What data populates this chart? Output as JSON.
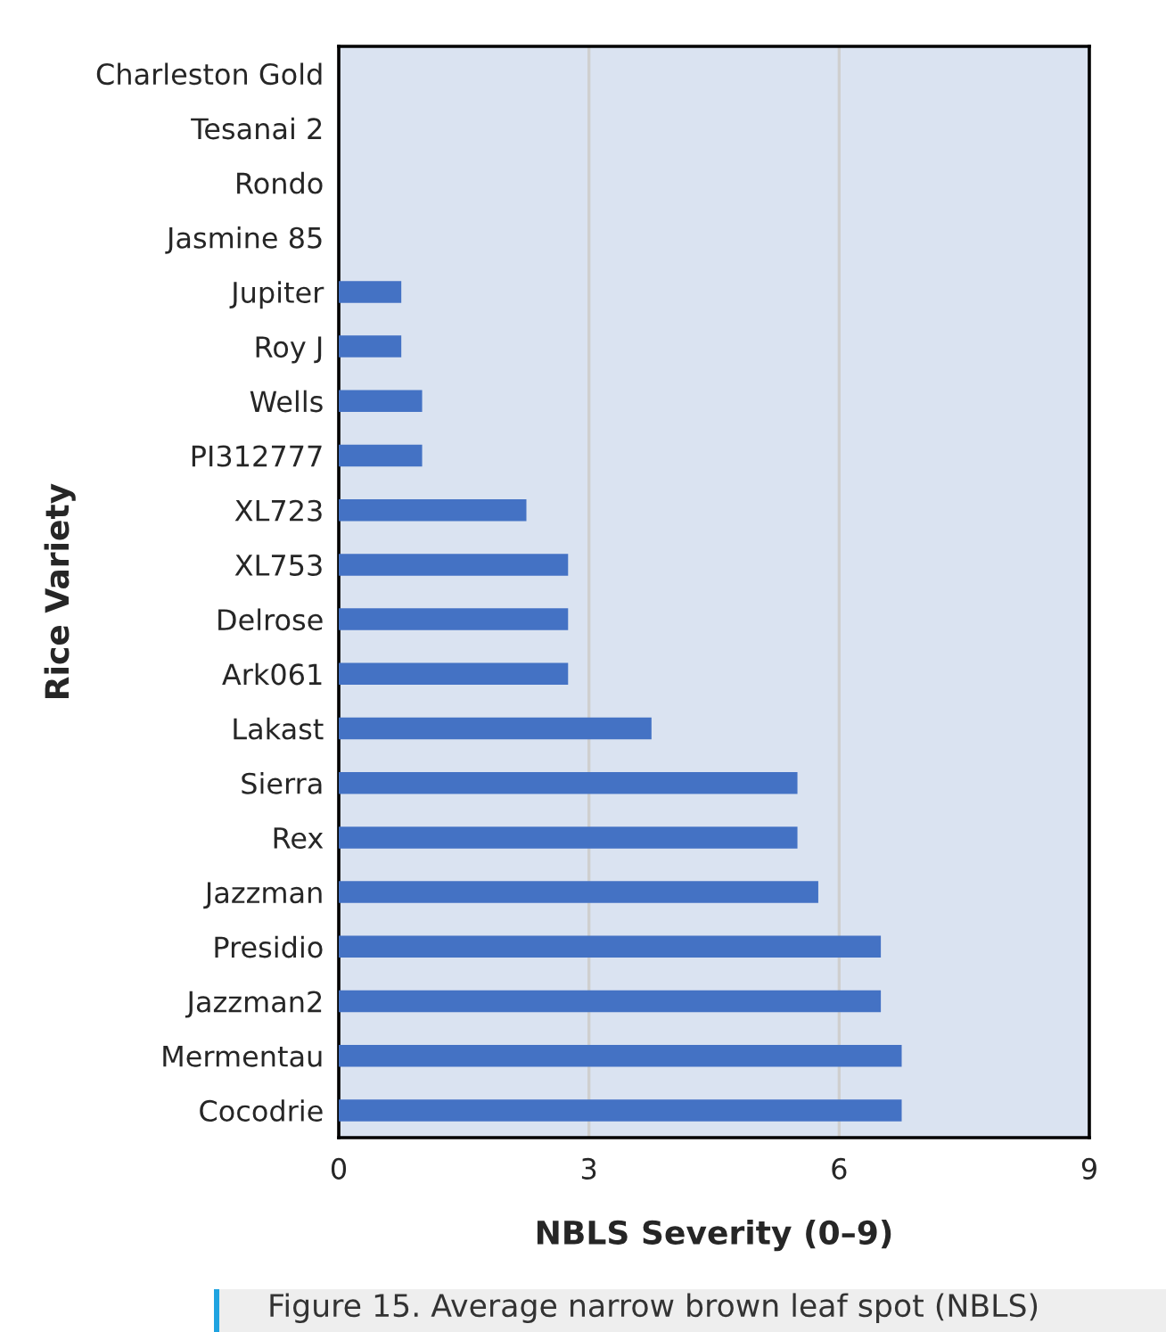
{
  "chart_data": {
    "type": "bar",
    "orientation": "horizontal",
    "categories": [
      "Charleston Gold",
      "Tesanai 2",
      "Rondo",
      "Jasmine 85",
      "Jupiter",
      "Roy J",
      "Wells",
      "PI312777",
      "XL723",
      "XL753",
      "Delrose",
      "Ark061",
      "Lakast",
      "Sierra",
      "Rex",
      "Jazzman",
      "Presidio",
      "Jazzman2",
      "Mermentau",
      "Cocodrie"
    ],
    "values": [
      0,
      0,
      0,
      0,
      0.75,
      0.75,
      1,
      1,
      2.25,
      2.75,
      2.75,
      2.75,
      3.75,
      5.5,
      5.5,
      5.75,
      6.5,
      6.5,
      6.75,
      6.75
    ],
    "color": "#4472c4",
    "xlim": [
      0,
      9
    ],
    "xticks": [
      0,
      3,
      6,
      9
    ],
    "xlabel": "NBLS Severity (0–9)",
    "ylabel": "Rice Variety",
    "grid": "x",
    "annotations": [
      "Figure 15. Average narrow brown leaf spot (NBLS)"
    ]
  }
}
